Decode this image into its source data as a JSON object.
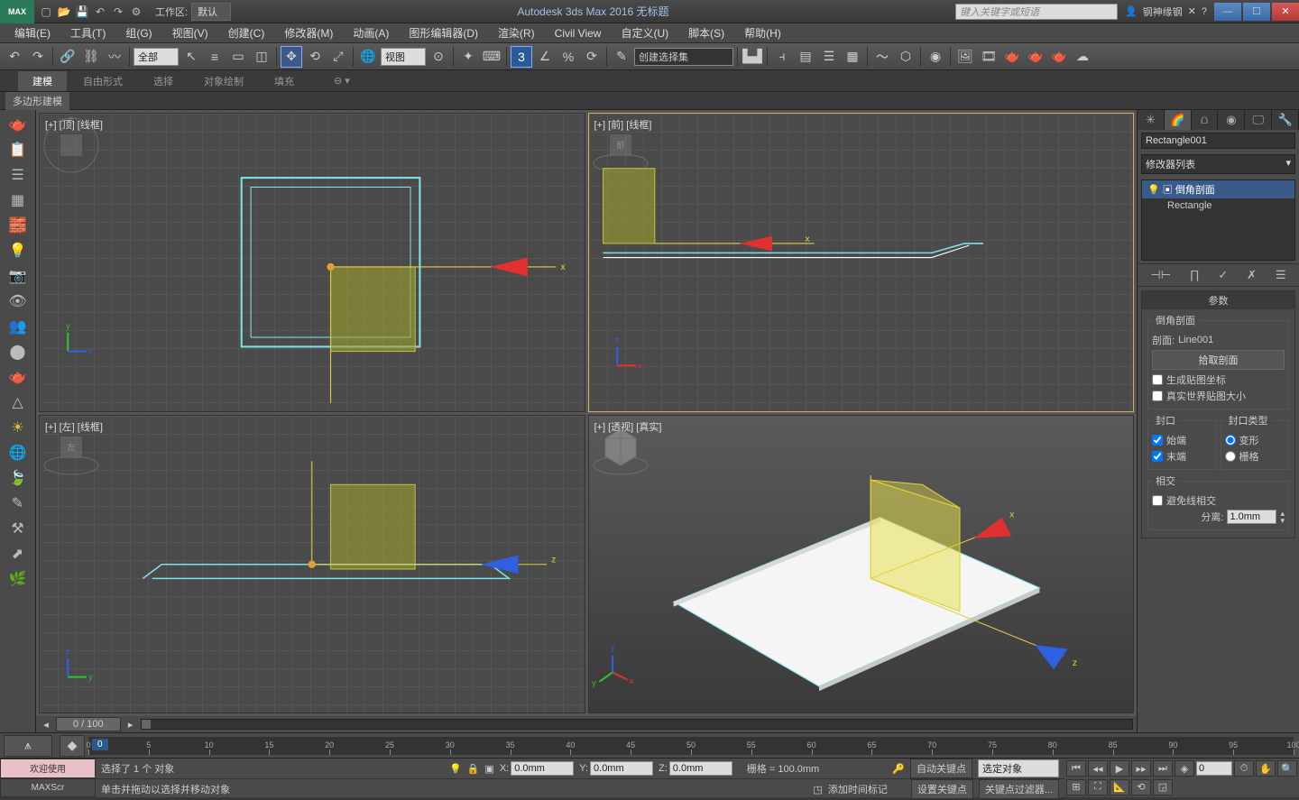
{
  "titlebar": {
    "logo": "MAX",
    "workspace_label": "工作区: ",
    "workspace_value": "默认",
    "app_title": "Autodesk 3ds Max 2016      无标题",
    "search_placeholder": "键入关键字或短语",
    "user_name": "钢神缘钢"
  },
  "menu": [
    "编辑(E)",
    "工具(T)",
    "组(G)",
    "视图(V)",
    "创建(C)",
    "修改器(M)",
    "动画(A)",
    "图形编辑器(D)",
    "渲染(R)",
    "Civil View",
    "自定义(U)",
    "脚本(S)",
    "帮助(H)"
  ],
  "toolbar": {
    "filter_combo": "全部",
    "ref_combo": "视图",
    "selset_combo": "创建选择集"
  },
  "ribbon": {
    "tabs": [
      "建模",
      "自由形式",
      "选择",
      "对象绘制",
      "填充"
    ],
    "active": 0,
    "sub": "多边形建模"
  },
  "viewports": {
    "top": {
      "label": "[+] [顶] [线框]"
    },
    "front": {
      "label": "[+] [前] [线框]"
    },
    "left": {
      "label": "[+] [左] [线框]"
    },
    "persp": {
      "label": "[+] [透视] [真实]"
    }
  },
  "scroll_label": "0 / 100",
  "rightpanel": {
    "object_name": "Rectangle001",
    "modlist_label": "修改器列表",
    "stack": [
      "倒角剖面",
      "Rectangle"
    ],
    "rollout_title": "参数",
    "group_profile": "倒角剖面",
    "profile_label": "剖面:",
    "profile_value": "Line001",
    "pick_btn": "拾取剖面",
    "gen_uv": "生成贴图坐标",
    "real_world": "真实世界贴图大小",
    "cap_group": "封口",
    "cap_start": "始端",
    "cap_end": "末端",
    "captype_group": "封口类型",
    "captype_morph": "变形",
    "captype_grid": "栅格",
    "intersect_group": "相交",
    "avoid_intersect": "避免线相交",
    "separation_label": "分离:",
    "separation_value": "1.0mm"
  },
  "timeline": {
    "frame_label": "0 / 100",
    "ticks": [
      0,
      5,
      10,
      15,
      20,
      25,
      30,
      35,
      40,
      45,
      50,
      55,
      60,
      65,
      70,
      75,
      80,
      85,
      90,
      95,
      100
    ]
  },
  "status": {
    "welcome": "欢迎使用",
    "maxscript": "MAXScr",
    "sel_msg": "选择了 1 个 对象",
    "hint_msg": "单击并拖动以选择并移动对象",
    "x": "0.0mm",
    "y": "0.0mm",
    "z": "0.0mm",
    "grid": "栅格 = 100.0mm",
    "autokey": "自动关键点",
    "keymode": "选定对象",
    "setkey": "设置关键点",
    "keyfilter": "关键点过滤器...",
    "addmarker": "添加时间标记"
  },
  "colors": {
    "accent_blue": "#3a5a8a",
    "wire_cyan": "#7ee0e8",
    "gizmo_red": "#e03030",
    "gizmo_green": "#30c030",
    "gizmo_blue": "#3060e0",
    "yellow": "#e0d040",
    "olive": "#a0a030",
    "active_border": "#d4b050"
  }
}
